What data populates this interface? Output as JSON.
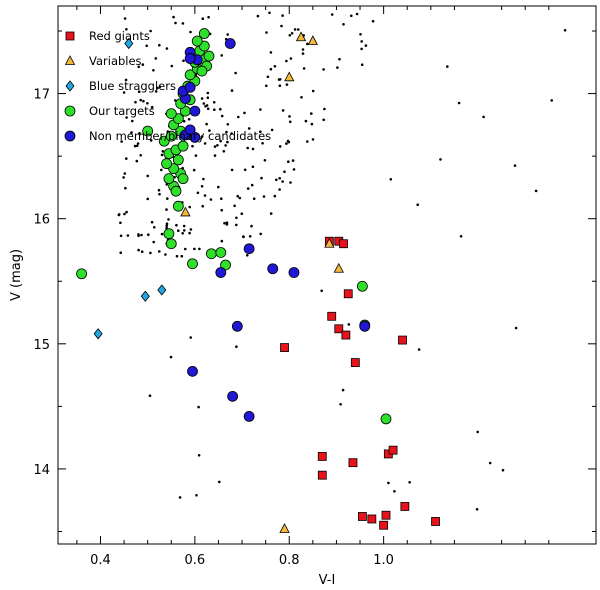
{
  "chart_data": {
    "type": "scatter",
    "title": "",
    "xlabel": "V-I",
    "ylabel": "V (mag)",
    "xlim": [
      0.31,
      1.45
    ],
    "ylim": [
      17.7,
      13.4
    ],
    "x_ticks": [
      0.4,
      0.6,
      0.8,
      1.0
    ],
    "x_tick_labels": [
      "0.4",
      "0.6",
      "0.8",
      "1.0"
    ],
    "y_ticks": [
      14,
      15,
      16,
      17
    ],
    "y_tick_labels": [
      "14",
      "15",
      "16",
      "17"
    ],
    "legend_position": "top-left",
    "colors": {
      "red_giants": "#e8121b",
      "variables": "#f5b83a",
      "blue_stragglers": "#22a8e0",
      "targets": "#2fe02a",
      "nonmember": "#2118d6",
      "field": "#000000"
    },
    "series": [
      {
        "name": "Red giants",
        "marker": "square",
        "color_key": "red_giants",
        "points": [
          [
            0.955,
            13.62
          ],
          [
            0.975,
            13.6
          ],
          [
            1.0,
            13.55
          ],
          [
            1.005,
            13.63
          ],
          [
            1.045,
            13.7
          ],
          [
            1.11,
            13.58
          ],
          [
            0.87,
            13.95
          ],
          [
            0.87,
            14.1
          ],
          [
            0.935,
            14.05
          ],
          [
            1.01,
            14.12
          ],
          [
            1.02,
            14.15
          ],
          [
            0.94,
            14.85
          ],
          [
            1.04,
            15.03
          ],
          [
            0.79,
            14.97
          ],
          [
            0.89,
            15.22
          ],
          [
            0.905,
            15.12
          ],
          [
            0.885,
            15.82
          ],
          [
            0.905,
            15.82
          ],
          [
            0.915,
            15.8
          ],
          [
            0.925,
            15.4
          ],
          [
            0.92,
            15.07
          ]
        ]
      },
      {
        "name": "Variables",
        "marker": "triangle",
        "color_key": "variables",
        "points": [
          [
            0.79,
            13.52
          ],
          [
            0.905,
            15.6
          ],
          [
            0.885,
            15.8
          ],
          [
            0.58,
            16.05
          ],
          [
            0.8,
            17.13
          ],
          [
            0.825,
            17.45
          ],
          [
            0.85,
            17.42
          ]
        ]
      },
      {
        "name": "Blue stragglers",
        "marker": "diamond",
        "color_key": "blue_stragglers",
        "points": [
          [
            0.395,
            15.08
          ],
          [
            0.495,
            15.38
          ],
          [
            0.53,
            15.43
          ],
          [
            0.46,
            17.4
          ],
          [
            0.575,
            16.65
          ]
        ]
      },
      {
        "name": "Our targets",
        "marker": "circle",
        "color_key": "targets",
        "points": [
          [
            0.36,
            15.56
          ],
          [
            0.96,
            15.15
          ],
          [
            0.955,
            15.46
          ],
          [
            1.005,
            14.4
          ],
          [
            0.55,
            15.8
          ],
          [
            0.545,
            15.88
          ],
          [
            0.595,
            15.64
          ],
          [
            0.635,
            15.72
          ],
          [
            0.655,
            15.73
          ],
          [
            0.665,
            15.63
          ],
          [
            0.555,
            16.26
          ],
          [
            0.565,
            16.1
          ],
          [
            0.56,
            16.22
          ],
          [
            0.545,
            16.32
          ],
          [
            0.57,
            16.36
          ],
          [
            0.575,
            16.32
          ],
          [
            0.555,
            16.4
          ],
          [
            0.54,
            16.44
          ],
          [
            0.565,
            16.47
          ],
          [
            0.545,
            16.52
          ],
          [
            0.56,
            16.55
          ],
          [
            0.575,
            16.58
          ],
          [
            0.535,
            16.62
          ],
          [
            0.55,
            16.66
          ],
          [
            0.57,
            16.7
          ],
          [
            0.555,
            16.75
          ],
          [
            0.565,
            16.8
          ],
          [
            0.58,
            16.86
          ],
          [
            0.55,
            16.84
          ],
          [
            0.57,
            16.92
          ],
          [
            0.59,
            16.95
          ],
          [
            0.575,
            17.0
          ],
          [
            0.585,
            17.06
          ],
          [
            0.6,
            17.1
          ],
          [
            0.59,
            17.15
          ],
          [
            0.605,
            17.2
          ],
          [
            0.6,
            17.25
          ],
          [
            0.615,
            17.28
          ],
          [
            0.61,
            17.34
          ],
          [
            0.62,
            17.38
          ],
          [
            0.605,
            17.42
          ],
          [
            0.62,
            17.48
          ],
          [
            0.63,
            17.3
          ],
          [
            0.625,
            17.22
          ],
          [
            0.615,
            17.18
          ],
          [
            0.5,
            16.7
          ]
        ]
      },
      {
        "name": "Non member/binary candidates",
        "marker": "circle",
        "color_key": "nonmember",
        "points": [
          [
            0.715,
            14.42
          ],
          [
            0.68,
            14.58
          ],
          [
            0.595,
            14.78
          ],
          [
            0.69,
            15.14
          ],
          [
            0.96,
            15.14
          ],
          [
            0.655,
            15.57
          ],
          [
            0.765,
            15.6
          ],
          [
            0.81,
            15.57
          ],
          [
            0.715,
            15.76
          ],
          [
            0.58,
            16.67
          ],
          [
            0.6,
            16.65
          ],
          [
            0.59,
            16.71
          ],
          [
            0.58,
            16.96
          ],
          [
            0.6,
            16.86
          ],
          [
            0.575,
            17.02
          ],
          [
            0.59,
            17.05
          ],
          [
            0.605,
            17.27
          ],
          [
            0.59,
            17.33
          ],
          [
            0.675,
            17.4
          ],
          [
            0.59,
            17.28
          ]
        ]
      }
    ]
  }
}
